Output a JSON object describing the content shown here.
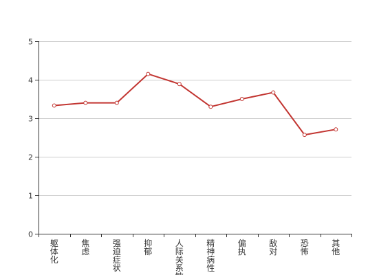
{
  "chart_data": {
    "type": "line",
    "title": "",
    "xlabel": "",
    "ylabel": "",
    "categories": [
      "躯体化",
      "焦虑",
      "强迫症状",
      "抑郁",
      "人际关系敏",
      "精神病性",
      "偏执",
      "敌对",
      "恐怖",
      "其他"
    ],
    "series": [
      {
        "values": [
          3.33,
          3.4,
          3.4,
          4.15,
          3.89,
          3.3,
          3.5,
          3.67,
          2.57,
          2.71
        ],
        "color": "#c23531"
      }
    ],
    "ylim": [
      0,
      5
    ],
    "yticks": [
      0,
      1,
      2,
      3,
      4,
      5
    ],
    "grid": true,
    "legend": "none"
  }
}
